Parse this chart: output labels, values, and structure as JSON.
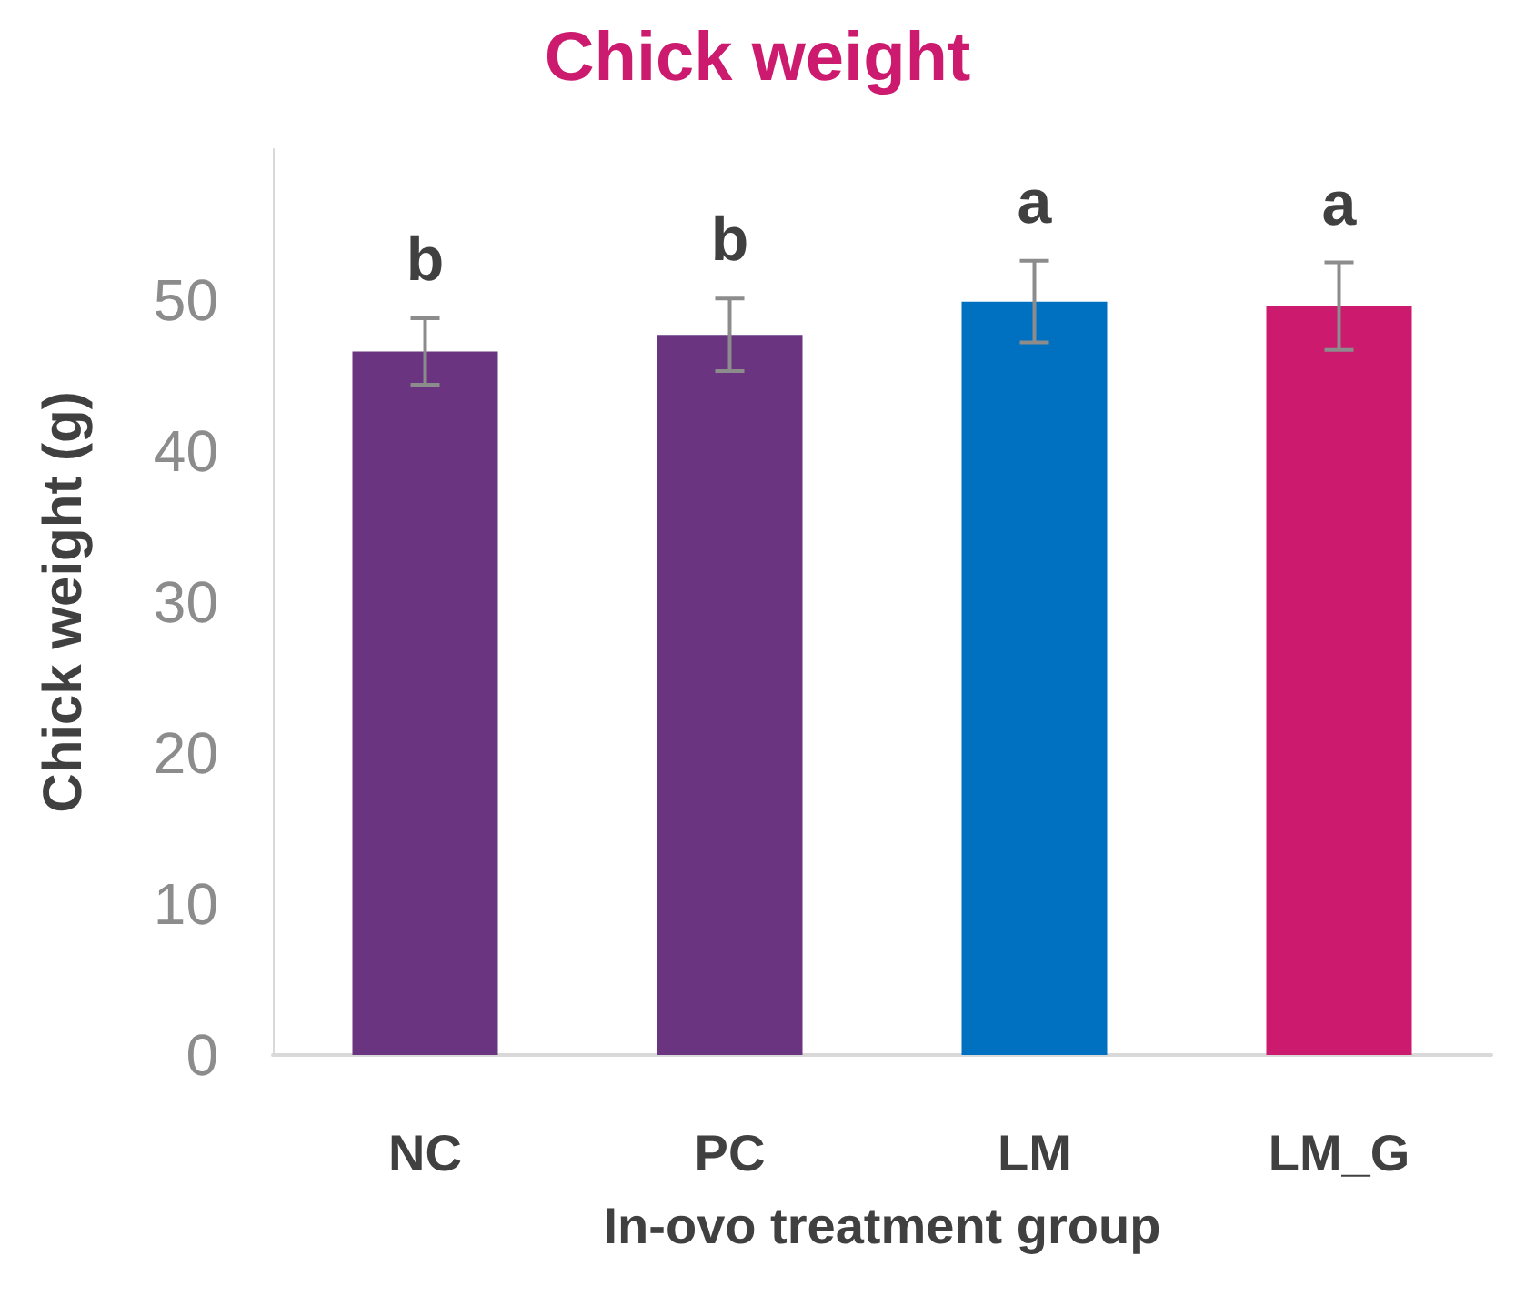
{
  "chart_data": {
    "type": "bar",
    "title": "Chick weight",
    "xlabel": "In-ovo treatment group",
    "ylabel": "Chick weight (g)",
    "categories": [
      "NC",
      "PC",
      "LM",
      "LM_G"
    ],
    "values": [
      46.6,
      47.7,
      49.9,
      49.6
    ],
    "colors": [
      "#6a3480",
      "#6a3480",
      "#0070c0",
      "#cc1a6e"
    ],
    "errors": [
      2.2,
      2.4,
      2.7,
      2.9
    ],
    "ylim": [
      0,
      60
    ],
    "yticks": [
      0,
      10,
      20,
      30,
      40,
      50
    ],
    "grid": false,
    "annotations": [
      "b",
      "b",
      "a",
      "a"
    ]
  }
}
